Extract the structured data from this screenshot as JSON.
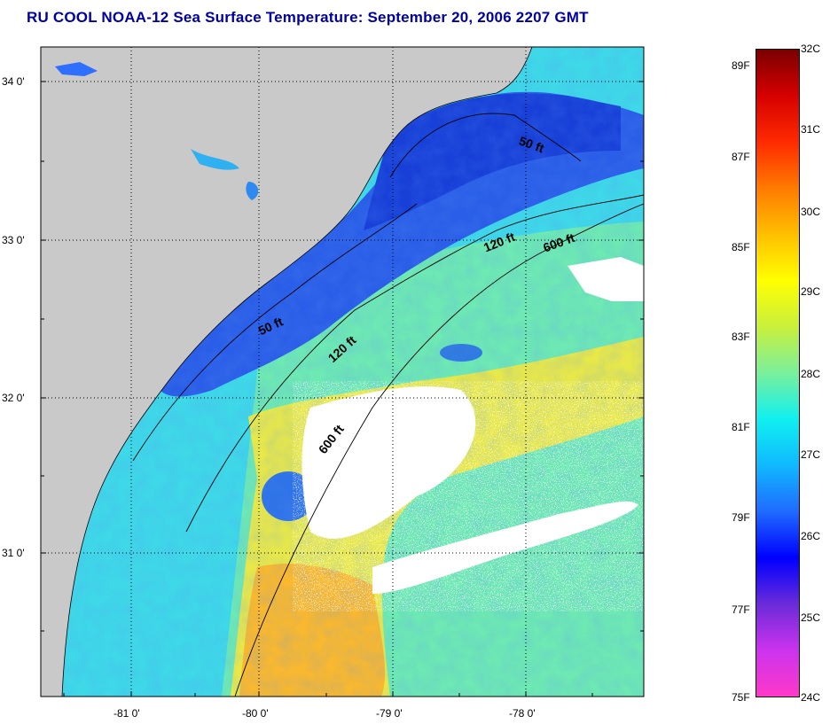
{
  "title": "RU COOL  NOAA-12  Sea Surface Temperature:  September 20, 2006 2207 GMT",
  "map": {
    "lat_ticks": [
      "34 0'",
      "33 0'",
      "32 0'",
      "31 0'"
    ],
    "lon_ticks": [
      "-81 0'",
      "-80 0'",
      "-79 0'",
      "-78 0'"
    ],
    "contour_labels": [
      "50 ft",
      "120 ft",
      "600 ft",
      "50 ft",
      "120 ft",
      "600 ft"
    ],
    "colors": {
      "land": "#c9c9c9",
      "cloud": "#ffffff",
      "coast": "#000000"
    }
  },
  "colorbar": {
    "celsius": [
      "32C",
      "31C",
      "30C",
      "29C",
      "28C",
      "27C",
      "26C",
      "25C",
      "24C"
    ],
    "fahrenheit": [
      "89F",
      "87F",
      "85F",
      "83F",
      "81F",
      "79F",
      "77F",
      "75F"
    ],
    "stops": [
      "#ff38c8",
      "#cc33ee",
      "#6a2bd8",
      "#0000ff",
      "#1f6bff",
      "#10b8ff",
      "#10f0f0",
      "#7af09c",
      "#c8f03c",
      "#ffff00",
      "#ffc000",
      "#ff7a00",
      "#ff2a00",
      "#d60000",
      "#7a0000"
    ]
  }
}
